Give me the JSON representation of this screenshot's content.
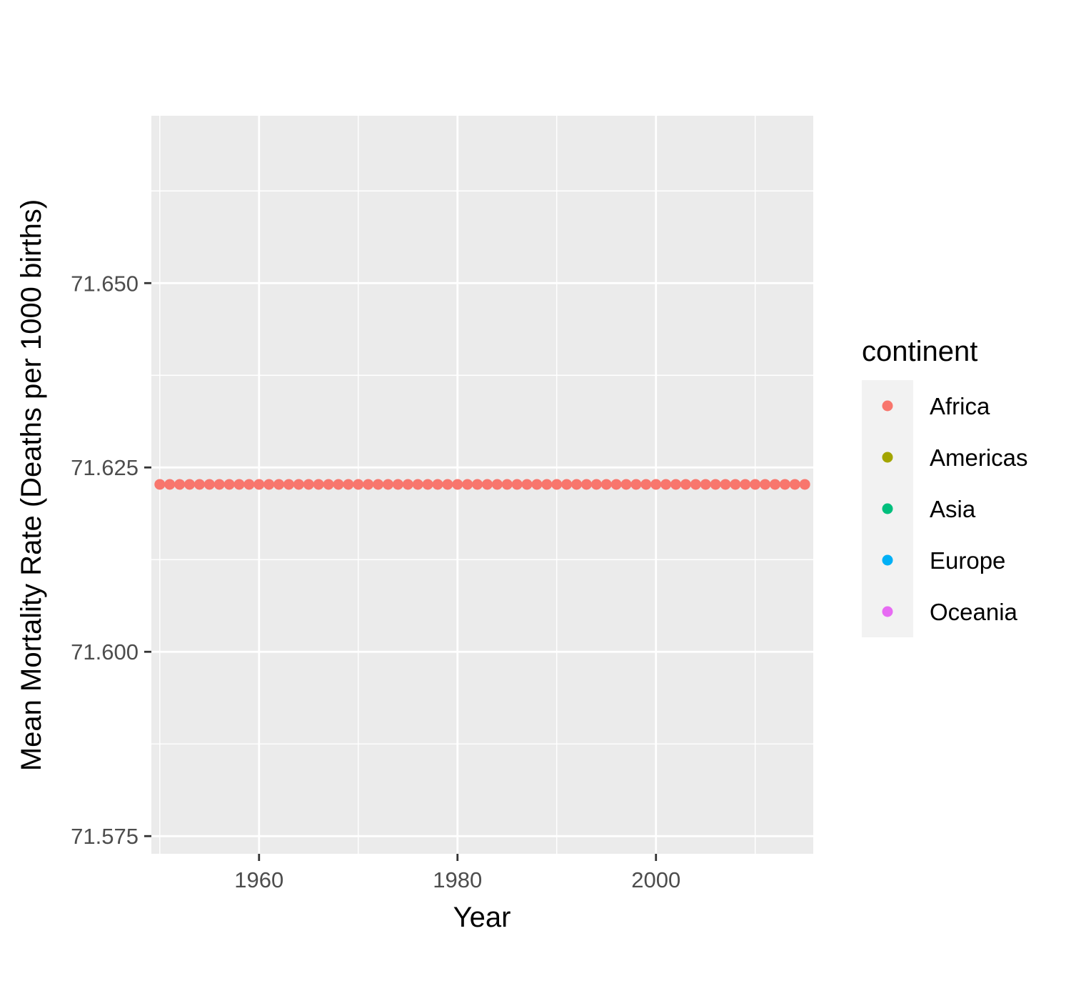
{
  "chart_data": {
    "type": "scatter",
    "title": "",
    "xlabel": "Year",
    "ylabel": "Mean Mortality Rate (Deaths per 1000 births)",
    "xlim": [
      1949.15,
      2015.85
    ],
    "ylim": [
      71.5726,
      71.6727
    ],
    "x_ticks": [
      1960,
      1980,
      2000
    ],
    "x_tick_labels": [
      "1960",
      "1980",
      "2000"
    ],
    "y_ticks": [
      71.575,
      71.6,
      71.625,
      71.65
    ],
    "y_tick_labels": [
      "71.575",
      "71.600",
      "71.625",
      "71.650"
    ],
    "grid": true,
    "legend": {
      "title": "continent",
      "position": "right",
      "entries": [
        {
          "name": "Africa",
          "color": "#F8766D"
        },
        {
          "name": "Americas",
          "color": "#A3A500"
        },
        {
          "name": "Asia",
          "color": "#00BF7D"
        },
        {
          "name": "Europe",
          "color": "#00B0F6"
        },
        {
          "name": "Oceania",
          "color": "#E76BF3"
        }
      ]
    },
    "series": [
      {
        "name": "Africa",
        "color": "#F8766D",
        "x": [
          1950,
          1951,
          1952,
          1953,
          1954,
          1955,
          1956,
          1957,
          1958,
          1959,
          1960,
          1961,
          1962,
          1963,
          1964,
          1965,
          1966,
          1967,
          1968,
          1969,
          1970,
          1971,
          1972,
          1973,
          1974,
          1975,
          1976,
          1977,
          1978,
          1979,
          1980,
          1981,
          1982,
          1983,
          1984,
          1985,
          1986,
          1987,
          1988,
          1989,
          1990,
          1991,
          1992,
          1993,
          1994,
          1995,
          1996,
          1997,
          1998,
          1999,
          2000,
          2001,
          2002,
          2003,
          2004,
          2005,
          2006,
          2007,
          2008,
          2009,
          2010,
          2011,
          2012,
          2013,
          2014,
          2015
        ],
        "y": [
          71.6227,
          71.6227,
          71.6227,
          71.6227,
          71.6227,
          71.6227,
          71.6227,
          71.6227,
          71.6227,
          71.6227,
          71.6227,
          71.6227,
          71.6227,
          71.6227,
          71.6227,
          71.6227,
          71.6227,
          71.6227,
          71.6227,
          71.6227,
          71.6227,
          71.6227,
          71.6227,
          71.6227,
          71.6227,
          71.6227,
          71.6227,
          71.6227,
          71.6227,
          71.6227,
          71.6227,
          71.6227,
          71.6227,
          71.6227,
          71.6227,
          71.6227,
          71.6227,
          71.6227,
          71.6227,
          71.6227,
          71.6227,
          71.6227,
          71.6227,
          71.6227,
          71.6227,
          71.6227,
          71.6227,
          71.6227,
          71.6227,
          71.6227,
          71.6227,
          71.6227,
          71.6227,
          71.6227,
          71.6227,
          71.6227,
          71.6227,
          71.6227,
          71.6227,
          71.6227,
          71.6227,
          71.6227,
          71.6227,
          71.6227,
          71.6227,
          71.6227
        ]
      }
    ]
  }
}
